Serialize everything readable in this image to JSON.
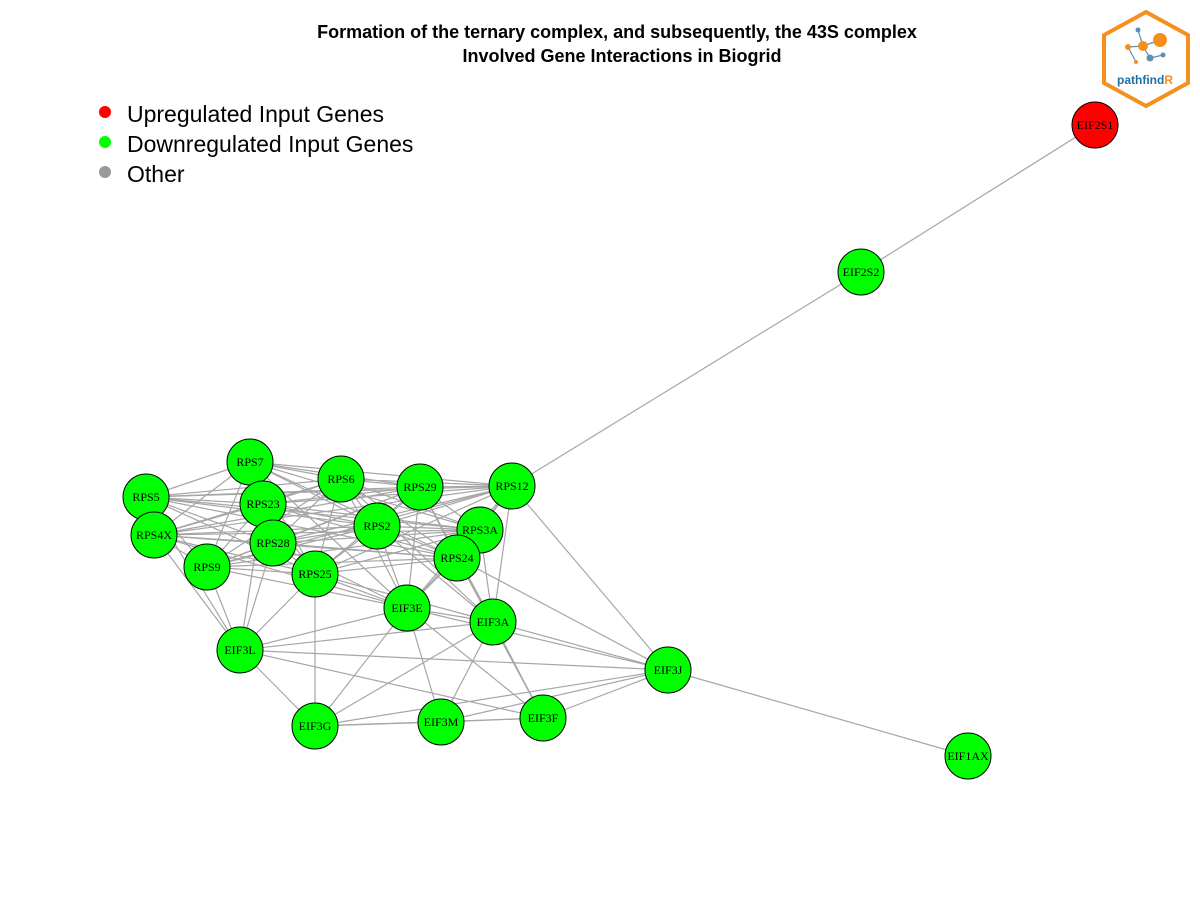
{
  "title": {
    "line1": "Formation of the ternary complex, and subsequently, the 43S complex",
    "line2": "Involved Gene Interactions in Biogrid"
  },
  "legend": [
    {
      "label": "Upregulated Input Genes",
      "color": "#ff0000"
    },
    {
      "label": "Downregulated Input Genes",
      "color": "#00ff00"
    },
    {
      "label": "Other",
      "color": "#999999"
    }
  ],
  "logo": {
    "text_main": "pathfind",
    "text_accent": "R",
    "border_color": "#f5901e",
    "text_color": "#1f6fa3"
  },
  "colors": {
    "up": "#ff0000",
    "down": "#00ff00",
    "edge": "#a6a6a6"
  },
  "nodes": [
    {
      "id": "EIF2S1",
      "group": "up"
    },
    {
      "id": "EIF2S2",
      "group": "down"
    },
    {
      "id": "RPS7",
      "group": "down"
    },
    {
      "id": "RPS5",
      "group": "down"
    },
    {
      "id": "RPS23",
      "group": "down"
    },
    {
      "id": "RPS6",
      "group": "down"
    },
    {
      "id": "RPS29",
      "group": "down"
    },
    {
      "id": "RPS12",
      "group": "down"
    },
    {
      "id": "RPS4X",
      "group": "down"
    },
    {
      "id": "RPS2",
      "group": "down"
    },
    {
      "id": "RPS3A",
      "group": "down"
    },
    {
      "id": "RPS28",
      "group": "down"
    },
    {
      "id": "RPS9",
      "group": "down"
    },
    {
      "id": "RPS25",
      "group": "down"
    },
    {
      "id": "RPS24",
      "group": "down"
    },
    {
      "id": "EIF3E",
      "group": "down"
    },
    {
      "id": "EIF3A",
      "group": "down"
    },
    {
      "id": "EIF3L",
      "group": "down"
    },
    {
      "id": "EIF3J",
      "group": "down"
    },
    {
      "id": "EIF3G",
      "group": "down"
    },
    {
      "id": "EIF3M",
      "group": "down"
    },
    {
      "id": "EIF3F",
      "group": "down"
    },
    {
      "id": "EIF1AX",
      "group": "down"
    }
  ],
  "edges": [
    [
      "EIF2S1",
      "EIF2S2"
    ],
    [
      "EIF2S2",
      "RPS12"
    ],
    [
      "EIF3J",
      "EIF1AX"
    ],
    [
      "RPS7",
      "RPS5"
    ],
    [
      "RPS7",
      "RPS23"
    ],
    [
      "RPS7",
      "RPS6"
    ],
    [
      "RPS7",
      "RPS29"
    ],
    [
      "RPS7",
      "RPS12"
    ],
    [
      "RPS7",
      "RPS4X"
    ],
    [
      "RPS7",
      "RPS2"
    ],
    [
      "RPS7",
      "RPS3A"
    ],
    [
      "RPS7",
      "RPS28"
    ],
    [
      "RPS7",
      "RPS9"
    ],
    [
      "RPS7",
      "RPS25"
    ],
    [
      "RPS7",
      "RPS24"
    ],
    [
      "RPS5",
      "RPS23"
    ],
    [
      "RPS5",
      "RPS6"
    ],
    [
      "RPS5",
      "RPS29"
    ],
    [
      "RPS5",
      "RPS12"
    ],
    [
      "RPS5",
      "RPS4X"
    ],
    [
      "RPS5",
      "RPS2"
    ],
    [
      "RPS5",
      "RPS3A"
    ],
    [
      "RPS5",
      "RPS28"
    ],
    [
      "RPS5",
      "RPS9"
    ],
    [
      "RPS5",
      "RPS25"
    ],
    [
      "RPS5",
      "RPS24"
    ],
    [
      "RPS5",
      "EIF3L"
    ],
    [
      "RPS23",
      "RPS6"
    ],
    [
      "RPS23",
      "RPS29"
    ],
    [
      "RPS23",
      "RPS12"
    ],
    [
      "RPS23",
      "RPS4X"
    ],
    [
      "RPS23",
      "RPS2"
    ],
    [
      "RPS23",
      "RPS3A"
    ],
    [
      "RPS23",
      "RPS28"
    ],
    [
      "RPS23",
      "RPS9"
    ],
    [
      "RPS23",
      "RPS25"
    ],
    [
      "RPS23",
      "RPS24"
    ],
    [
      "RPS6",
      "RPS29"
    ],
    [
      "RPS6",
      "RPS12"
    ],
    [
      "RPS6",
      "RPS4X"
    ],
    [
      "RPS6",
      "RPS2"
    ],
    [
      "RPS6",
      "RPS3A"
    ],
    [
      "RPS6",
      "RPS28"
    ],
    [
      "RPS6",
      "RPS9"
    ],
    [
      "RPS6",
      "RPS25"
    ],
    [
      "RPS6",
      "RPS24"
    ],
    [
      "RPS6",
      "EIF3E"
    ],
    [
      "RPS6",
      "EIF3A"
    ],
    [
      "RPS29",
      "RPS12"
    ],
    [
      "RPS29",
      "RPS4X"
    ],
    [
      "RPS29",
      "RPS2"
    ],
    [
      "RPS29",
      "RPS3A"
    ],
    [
      "RPS29",
      "RPS28"
    ],
    [
      "RPS29",
      "RPS9"
    ],
    [
      "RPS29",
      "RPS25"
    ],
    [
      "RPS29",
      "RPS24"
    ],
    [
      "RPS29",
      "EIF3E"
    ],
    [
      "RPS29",
      "EIF3A"
    ],
    [
      "RPS12",
      "RPS4X"
    ],
    [
      "RPS12",
      "RPS2"
    ],
    [
      "RPS12",
      "RPS3A"
    ],
    [
      "RPS12",
      "RPS28"
    ],
    [
      "RPS12",
      "RPS9"
    ],
    [
      "RPS12",
      "RPS25"
    ],
    [
      "RPS12",
      "RPS24"
    ],
    [
      "RPS12",
      "EIF3E"
    ],
    [
      "RPS12",
      "EIF3A"
    ],
    [
      "RPS4X",
      "RPS2"
    ],
    [
      "RPS4X",
      "RPS3A"
    ],
    [
      "RPS4X",
      "RPS28"
    ],
    [
      "RPS4X",
      "RPS9"
    ],
    [
      "RPS4X",
      "RPS25"
    ],
    [
      "RPS4X",
      "RPS24"
    ],
    [
      "RPS4X",
      "EIF3L"
    ],
    [
      "RPS4X",
      "EIF3E"
    ],
    [
      "RPS2",
      "RPS3A"
    ],
    [
      "RPS2",
      "RPS28"
    ],
    [
      "RPS2",
      "RPS9"
    ],
    [
      "RPS2",
      "RPS25"
    ],
    [
      "RPS2",
      "RPS24"
    ],
    [
      "RPS2",
      "EIF3E"
    ],
    [
      "RPS2",
      "EIF3A"
    ],
    [
      "RPS3A",
      "RPS28"
    ],
    [
      "RPS3A",
      "RPS9"
    ],
    [
      "RPS3A",
      "RPS25"
    ],
    [
      "RPS3A",
      "RPS24"
    ],
    [
      "RPS3A",
      "EIF3E"
    ],
    [
      "RPS3A",
      "EIF3A"
    ],
    [
      "RPS28",
      "RPS9"
    ],
    [
      "RPS28",
      "RPS25"
    ],
    [
      "RPS28",
      "RPS24"
    ],
    [
      "RPS28",
      "EIF3E"
    ],
    [
      "RPS28",
      "EIF3L"
    ],
    [
      "RPS9",
      "RPS25"
    ],
    [
      "RPS9",
      "RPS24"
    ],
    [
      "RPS9",
      "EIF3L"
    ],
    [
      "RPS9",
      "EIF3E"
    ],
    [
      "RPS25",
      "RPS24"
    ],
    [
      "RPS25",
      "EIF3E"
    ],
    [
      "RPS25",
      "EIF3A"
    ],
    [
      "RPS25",
      "EIF3L"
    ],
    [
      "RPS25",
      "EIF3G"
    ],
    [
      "RPS24",
      "EIF3E"
    ],
    [
      "RPS24",
      "EIF3A"
    ],
    [
      "RPS24",
      "EIF3F"
    ],
    [
      "EIF3E",
      "EIF3A"
    ],
    [
      "EIF3E",
      "EIF3L"
    ],
    [
      "EIF3E",
      "EIF3J"
    ],
    [
      "EIF3E",
      "EIF3G"
    ],
    [
      "EIF3E",
      "EIF3M"
    ],
    [
      "EIF3E",
      "EIF3F"
    ],
    [
      "EIF3A",
      "EIF3L"
    ],
    [
      "EIF3A",
      "EIF3J"
    ],
    [
      "EIF3A",
      "EIF3G"
    ],
    [
      "EIF3A",
      "EIF3M"
    ],
    [
      "EIF3A",
      "EIF3F"
    ],
    [
      "EIF3L",
      "EIF3J"
    ],
    [
      "EIF3L",
      "EIF3G"
    ],
    [
      "EIF3L",
      "EIF3F"
    ],
    [
      "EIF3J",
      "EIF3M"
    ],
    [
      "EIF3J",
      "EIF3F"
    ],
    [
      "EIF3J",
      "EIF3G"
    ],
    [
      "EIF3G",
      "EIF3M"
    ],
    [
      "EIF3G",
      "EIF3F"
    ],
    [
      "EIF3M",
      "EIF3F"
    ],
    [
      "RPS23",
      "EIF3L"
    ],
    [
      "RPS7",
      "EIF3E"
    ],
    [
      "RPS24",
      "EIF3J"
    ],
    [
      "RPS12",
      "EIF3J"
    ]
  ]
}
